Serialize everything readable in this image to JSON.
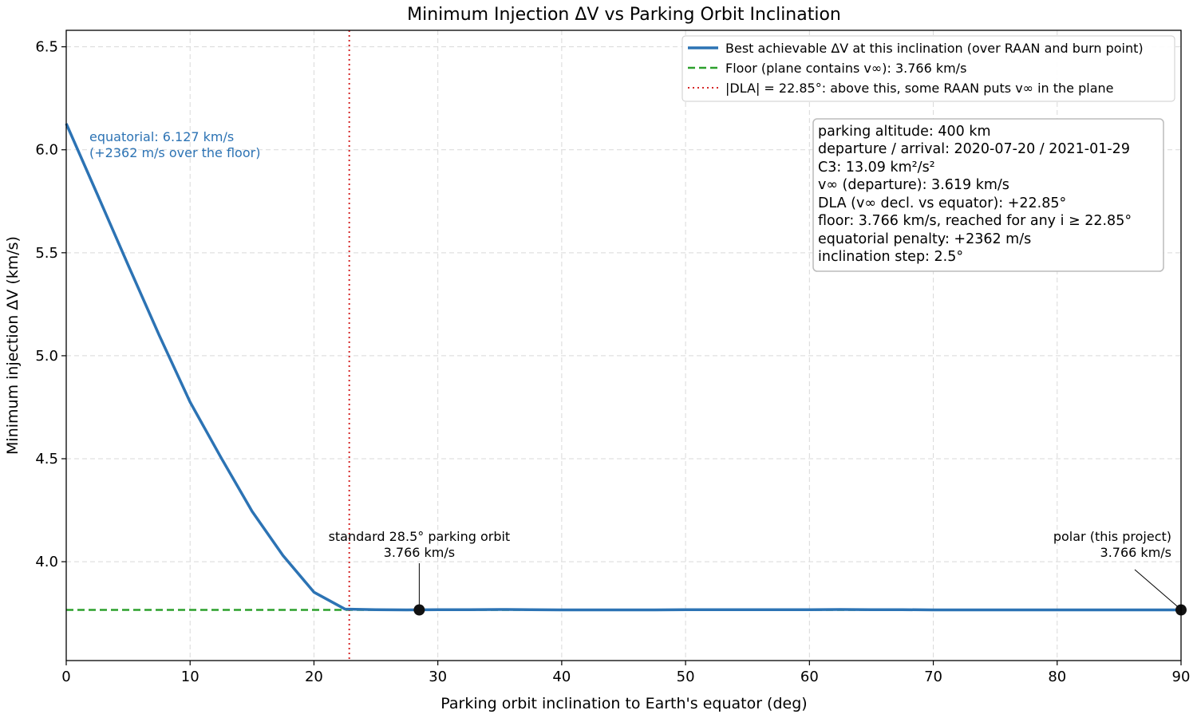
{
  "chart_data": {
    "type": "line",
    "title": "Minimum Injection ΔV vs Parking Orbit Inclination",
    "xlabel": "Parking orbit inclination to Earth's equator (deg)",
    "ylabel": "Minimum injection ΔV (km/s)",
    "xlim": [
      0,
      90
    ],
    "ylim": [
      3.52,
      6.58
    ],
    "xticks": [
      "0",
      "10",
      "20",
      "30",
      "40",
      "50",
      "60",
      "70",
      "80",
      "90"
    ],
    "yticks": [
      "4.0",
      "4.5",
      "5.0",
      "5.5",
      "6.0",
      "6.5"
    ],
    "grid": true,
    "legend_position": "top-right",
    "series": [
      {
        "name": "Best achievable ΔV at this inclination (over RAAN and burn point)",
        "color": "#2c73b4",
        "style": "solid",
        "x": [
          0,
          2.5,
          5,
          7.5,
          10,
          12.5,
          15,
          17.5,
          20,
          22.5,
          25,
          27.5,
          30,
          32.5,
          35,
          37.5,
          40,
          42.5,
          45,
          47.5,
          50,
          52.5,
          55,
          57.5,
          60,
          62.5,
          65,
          67.5,
          70,
          72.5,
          75,
          77.5,
          80,
          82.5,
          85,
          87.5,
          90
        ],
        "y": [
          6.127,
          5.785,
          5.44,
          5.1,
          4.775,
          4.505,
          4.245,
          4.03,
          3.852,
          3.77,
          3.767,
          3.766,
          3.767,
          3.767,
          3.768,
          3.767,
          3.766,
          3.766,
          3.766,
          3.766,
          3.767,
          3.767,
          3.767,
          3.767,
          3.767,
          3.768,
          3.767,
          3.767,
          3.766,
          3.766,
          3.766,
          3.766,
          3.766,
          3.766,
          3.766,
          3.766,
          3.766
        ]
      },
      {
        "name": "Floor (plane contains v∞): 3.766 km/s",
        "color": "#2ca02c",
        "style": "dashed",
        "y_constant": 3.766
      },
      {
        "name": "|DLA| = 22.85°: above this, some RAAN puts v∞ in the plane",
        "color": "#d62728",
        "style": "dotted",
        "x_constant": 22.85
      }
    ],
    "markers": [
      {
        "x": 28.5,
        "y": 3.766,
        "label_line1": "standard 28.5° parking orbit",
        "label_line2": "3.766 km/s"
      },
      {
        "x": 90,
        "y": 3.766,
        "label_line1": "polar (this project)",
        "label_line2": "3.766 km/s"
      }
    ],
    "equatorial_note": {
      "line1": "equatorial: 6.127 km/s",
      "line2": "(+2362 m/s over the floor)",
      "color": "#2c73b4"
    },
    "info_box": [
      "parking altitude: 400 km",
      "departure / arrival: 2020-07-20 / 2021-01-29",
      "C3: 13.09 km²/s²",
      "v∞ (departure): 3.619 km/s",
      "DLA (v∞ decl. vs equator): +22.85°",
      "floor: 3.766 km/s, reached for any i ≥ 22.85°",
      "equatorial penalty: +2362 m/s",
      "inclination step: 2.5°"
    ]
  }
}
